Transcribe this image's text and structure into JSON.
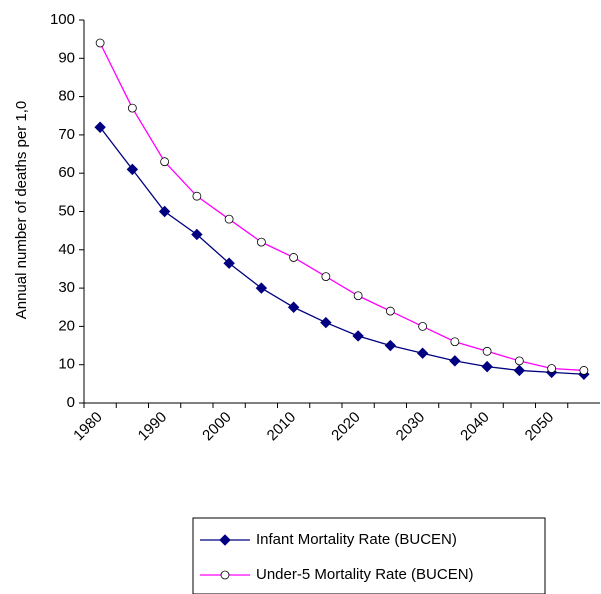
{
  "chart_data": {
    "type": "line",
    "y_label": "Annual number of deaths per 1,0",
    "categories": [
      "1980",
      null,
      "1990",
      null,
      "2000",
      null,
      "2010",
      null,
      "2020",
      null,
      "2030",
      null,
      "2040",
      null,
      "2050",
      null
    ],
    "series": [
      {
        "name": "Infant Mortality Rate (BUCEN)",
        "color": "#000080",
        "marker": "diamond",
        "values": [
          72,
          61,
          50,
          44,
          36.5,
          30,
          25,
          21,
          17.5,
          15,
          13,
          11,
          9.5,
          8.5,
          8,
          7.5
        ]
      },
      {
        "name": "Under-5 Mortality Rate (BUCEN)",
        "color": "#ff00ff",
        "marker": "circle",
        "values": [
          94,
          77,
          63,
          54,
          48,
          42,
          38,
          33,
          28,
          24,
          20,
          16,
          13.5,
          11,
          9,
          8.5
        ]
      }
    ],
    "ylim": [
      0,
      100
    ],
    "yticks": [
      0,
      10,
      20,
      30,
      40,
      50,
      60,
      70,
      80,
      90,
      100
    ],
    "grid": false
  }
}
